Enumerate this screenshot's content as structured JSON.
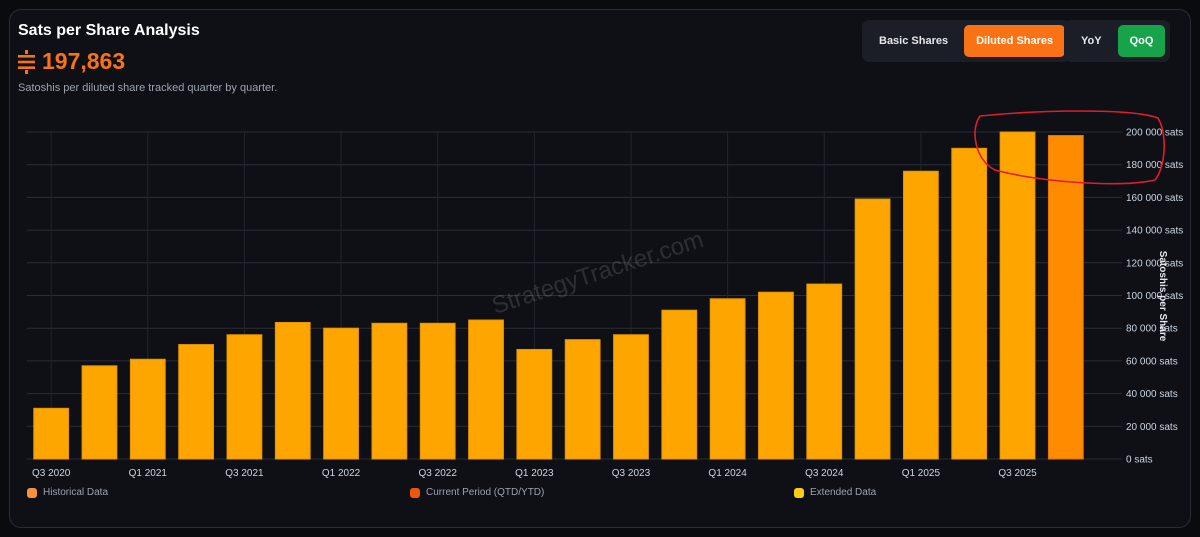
{
  "header": {
    "title": "Sats per Share Analysis",
    "metric_value": "197,863",
    "subtitle": "Satoshis per diluted share tracked quarter by quarter."
  },
  "toggles": {
    "share_type": [
      {
        "label": "Basic Shares",
        "active": false
      },
      {
        "label": "Diluted Shares",
        "active": true
      }
    ],
    "period": [
      {
        "label": "YoY",
        "active": false
      },
      {
        "label": "QoQ",
        "active": true
      }
    ]
  },
  "watermark": "StrategyTracker.com",
  "colors": {
    "bar": "#ffa500",
    "bar_current": "#ff8c00",
    "accent": "#f97316",
    "green": "#16a34a",
    "highlight_circle": "#e11d2a"
  },
  "chart_data": {
    "type": "bar",
    "categories": [
      "Q3 2020",
      "Q4 2020",
      "Q1 2021",
      "Q2 2021",
      "Q3 2021",
      "Q4 2021",
      "Q1 2022",
      "Q2 2022",
      "Q3 2022",
      "Q4 2022",
      "Q1 2023",
      "Q2 2023",
      "Q3 2023",
      "Q4 2023",
      "Q1 2024",
      "Q2 2024",
      "Q3 2024",
      "Q4 2024",
      "Q1 2025",
      "Q2 2025",
      "Q3 2025",
      "Q4 2025"
    ],
    "tick_labels": [
      "Q3 2020",
      "",
      "Q1 2021",
      "",
      "Q3 2021",
      "",
      "Q1 2022",
      "",
      "Q3 2022",
      "",
      "Q1 2023",
      "",
      "Q3 2023",
      "",
      "Q1 2024",
      "",
      "Q3 2024",
      "",
      "Q1 2025",
      "",
      "Q3 2025",
      ""
    ],
    "values": [
      31000,
      57000,
      61000,
      70000,
      76000,
      83500,
      80000,
      83000,
      83000,
      85000,
      67000,
      73000,
      76000,
      91000,
      98000,
      102000,
      107000,
      159000,
      176000,
      190000,
      200000,
      197863
    ],
    "current_index": 21,
    "ylabel": "Satoshis per Share",
    "ylim": [
      0,
      200000
    ],
    "y_ticks": [
      0,
      20000,
      40000,
      60000,
      80000,
      100000,
      120000,
      140000,
      160000,
      180000,
      200000
    ],
    "y_tick_labels": [
      "0 sats",
      "20 000 sats",
      "40 000 sats",
      "60 000 sats",
      "80 000 sats",
      "100 000 sats",
      "120 000 sats",
      "140 000 sats",
      "160 000 sats",
      "180 000 sats",
      "200 000 sats"
    ],
    "grid": true,
    "legend": [
      {
        "label": "Historical Data",
        "color": "#fb923c"
      },
      {
        "label": "Current Period (QTD/YTD)",
        "color": "#ea580c"
      },
      {
        "label": "Extended Data",
        "color": "#facc15"
      }
    ],
    "legend_position": "bottom"
  }
}
